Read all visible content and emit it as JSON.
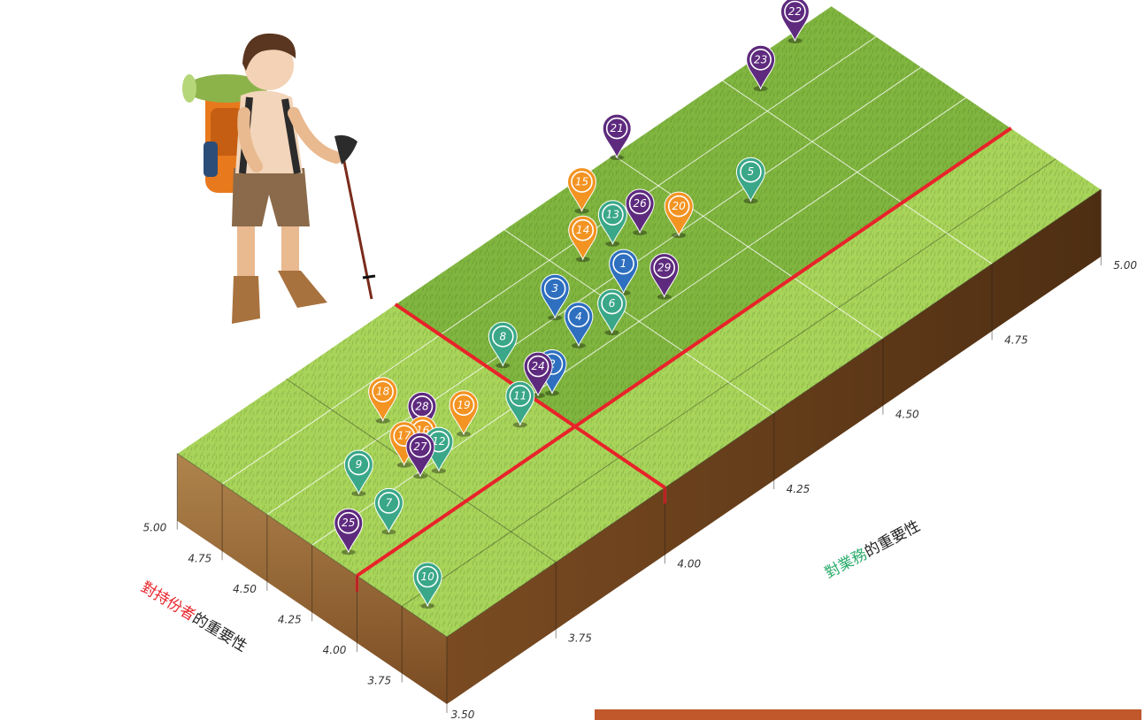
{
  "chart_data": {
    "type": "scatter",
    "x_axis": {
      "label_highlight": "對持份者",
      "label_rest": "的重要性",
      "highlight_color": "#e8232a",
      "range": [
        3.5,
        5.0
      ],
      "ticks": [
        "3.50",
        "3.75",
        "4.00",
        "4.25",
        "4.50",
        "4.75",
        "5.00"
      ]
    },
    "y_axis": {
      "label_highlight": "對業務",
      "label_rest": "的重要性",
      "highlight_color": "#2bab6b",
      "range": [
        3.5,
        5.0
      ],
      "ticks": [
        "3.75",
        "4.00",
        "4.25",
        "4.50",
        "4.75",
        "5.00"
      ]
    },
    "threshold": {
      "x": 4.0,
      "y": 4.0,
      "color": "#e8232a"
    },
    "category_colors": {
      "blue": "#2e6fbf",
      "teal": "#3aa788",
      "orange": "#f39322",
      "purple": "#5e2a7e"
    },
    "points": [
      {
        "id": "1",
        "x": 4.41,
        "y": 4.28,
        "color": "blue"
      },
      {
        "id": "2",
        "x": 4.2,
        "y": 4.03,
        "color": "blue"
      },
      {
        "id": "3",
        "x": 4.5,
        "y": 4.16,
        "color": "blue"
      },
      {
        "id": "4",
        "x": 4.32,
        "y": 4.14,
        "color": "blue"
      },
      {
        "id": "5",
        "x": 4.43,
        "y": 4.58,
        "color": "teal"
      },
      {
        "id": "6",
        "x": 4.28,
        "y": 4.2,
        "color": "teal"
      },
      {
        "id": "7",
        "x": 4.09,
        "y": 3.61,
        "color": "teal"
      },
      {
        "id": "8",
        "x": 4.45,
        "y": 4.02,
        "color": "teal"
      },
      {
        "id": "9",
        "x": 4.33,
        "y": 3.64,
        "color": "teal"
      },
      {
        "id": "10",
        "x": 3.68,
        "y": 3.53,
        "color": "teal"
      },
      {
        "id": "11",
        "x": 4.16,
        "y": 3.94,
        "color": "teal"
      },
      {
        "id": "12",
        "x": 4.2,
        "y": 3.77,
        "color": "teal"
      },
      {
        "id": "13",
        "x": 4.64,
        "y": 4.35,
        "color": "teal"
      },
      {
        "id": "14",
        "x": 4.66,
        "y": 4.29,
        "color": "orange"
      },
      {
        "id": "15",
        "x": 4.86,
        "y": 4.37,
        "color": "orange"
      },
      {
        "id": "16",
        "x": 4.29,
        "y": 3.77,
        "color": "orange"
      },
      {
        "id": "17",
        "x": 4.32,
        "y": 3.74,
        "color": "orange"
      },
      {
        "id": "18",
        "x": 4.56,
        "y": 3.79,
        "color": "orange"
      },
      {
        "id": "19",
        "x": 4.28,
        "y": 3.86,
        "color": "orange"
      },
      {
        "id": "20",
        "x": 4.49,
        "y": 4.44,
        "color": "orange"
      },
      {
        "id": "21",
        "x": 4.98,
        "y": 4.5,
        "color": "purple"
      },
      {
        "id": "22",
        "x": 4.96,
        "y": 4.9,
        "color": "purple"
      },
      {
        "id": "23",
        "x": 4.86,
        "y": 4.78,
        "color": "purple"
      },
      {
        "id": "24",
        "x": 4.23,
        "y": 4.01,
        "color": "purple"
      },
      {
        "id": "25",
        "x": 4.12,
        "y": 3.53,
        "color": "purple"
      },
      {
        "id": "26",
        "x": 4.61,
        "y": 4.4,
        "color": "purple"
      },
      {
        "id": "27",
        "x": 4.23,
        "y": 3.74,
        "color": "purple"
      },
      {
        "id": "28",
        "x": 4.39,
        "y": 3.81,
        "color": "purple"
      },
      {
        "id": "29",
        "x": 4.28,
        "y": 4.32,
        "color": "purple"
      }
    ]
  },
  "palette": {
    "grass_light": "#a8d45a",
    "grass_dark": "#5f9a2a",
    "soil_top": "#9b6a35",
    "soil_dark": "#6e4420",
    "footer_bar": "#c0582b"
  }
}
